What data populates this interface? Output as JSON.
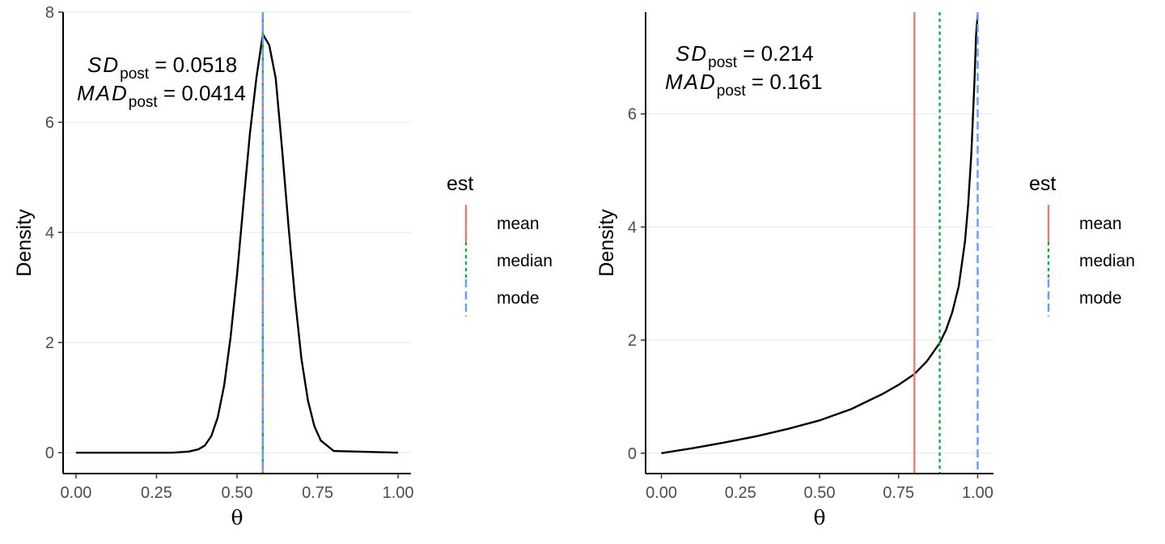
{
  "chart_data": [
    {
      "type": "line",
      "xlabel": "θ",
      "ylabel": "Density",
      "xlim": [
        -0.04,
        1.04
      ],
      "ylim": [
        -0.38,
        8.0
      ],
      "xticks": [
        0.0,
        0.25,
        0.5,
        0.75,
        1.0
      ],
      "xtick_labels": [
        "0.00",
        "0.25",
        "0.50",
        "0.75",
        "1.00"
      ],
      "yticks": [
        0,
        2,
        4,
        6,
        8
      ],
      "ytick_labels": [
        "0",
        "2",
        "4",
        "6",
        "8"
      ],
      "grid": "horizontal major",
      "series": [
        {
          "x": [
            0.0,
            0.3,
            0.35,
            0.38,
            0.4,
            0.42,
            0.44,
            0.46,
            0.48,
            0.5,
            0.52,
            0.54,
            0.56,
            0.58,
            0.6,
            0.62,
            0.64,
            0.66,
            0.68,
            0.7,
            0.72,
            0.74,
            0.76,
            0.8,
            1.0
          ],
          "y": [
            0.0,
            0.0,
            0.02,
            0.06,
            0.13,
            0.3,
            0.64,
            1.22,
            2.1,
            3.23,
            4.53,
            5.8,
            6.8,
            7.6,
            7.4,
            6.8,
            5.5,
            4.1,
            2.8,
            1.7,
            0.95,
            0.48,
            0.22,
            0.03,
            0.0
          ]
        }
      ],
      "vlines": [
        {
          "est": "mean",
          "x": 0.58
        },
        {
          "est": "median",
          "x": 0.58
        },
        {
          "est": "mode",
          "x": 0.58
        }
      ],
      "annotation": {
        "line1": {
          "sym": "SD",
          "sub": "post",
          "value": " = 0.0518"
        },
        "line2": {
          "sym": "MAD",
          "sub": "post",
          "value": " = 0.0414"
        }
      }
    },
    {
      "type": "line",
      "xlabel": "θ",
      "ylabel": "Density",
      "xlim": [
        -0.05,
        1.05
      ],
      "ylim": [
        -0.36,
        7.8
      ],
      "xticks": [
        0.0,
        0.25,
        0.5,
        0.75,
        1.0
      ],
      "xtick_labels": [
        "0.00",
        "0.25",
        "0.50",
        "0.75",
        "1.00"
      ],
      "yticks": [
        0,
        2,
        4,
        6
      ],
      "ytick_labels": [
        "0",
        "2",
        "4",
        "6"
      ],
      "grid": "horizontal major",
      "series": [
        {
          "x": [
            0.0,
            0.1,
            0.2,
            0.3,
            0.4,
            0.5,
            0.6,
            0.7,
            0.75,
            0.8,
            0.84,
            0.88,
            0.9,
            0.92,
            0.94,
            0.96,
            0.97,
            0.98,
            0.99,
            0.995,
            1.0
          ],
          "y": [
            0.0,
            0.09,
            0.19,
            0.3,
            0.43,
            0.58,
            0.78,
            1.05,
            1.21,
            1.4,
            1.63,
            1.95,
            2.18,
            2.5,
            2.95,
            3.75,
            4.4,
            5.3,
            6.6,
            7.4,
            7.75
          ]
        }
      ],
      "vlines": [
        {
          "est": "mean",
          "x": 0.8
        },
        {
          "est": "median",
          "x": 0.88
        },
        {
          "est": "mode",
          "x": 1.0
        }
      ],
      "annotation": {
        "line1": {
          "sym": "SD",
          "sub": "post",
          "value": " = 0.214"
        },
        "line2": {
          "sym": "MAD",
          "sub": "post",
          "value": " = 0.161"
        }
      }
    }
  ],
  "legend": {
    "title": "est",
    "items": [
      {
        "label": "mean",
        "color": "#F8766D",
        "dash": "solid"
      },
      {
        "label": "median",
        "color": "#00BA38",
        "dash": "dotted"
      },
      {
        "label": "mode",
        "color": "#619CFF",
        "dash": "dashed"
      }
    ]
  },
  "colors": {
    "curve": "#000000",
    "grid": "#ebebeb",
    "axis": "#000000",
    "mean": "#F8766D",
    "median": "#00BA38",
    "mode": "#619CFF"
  }
}
